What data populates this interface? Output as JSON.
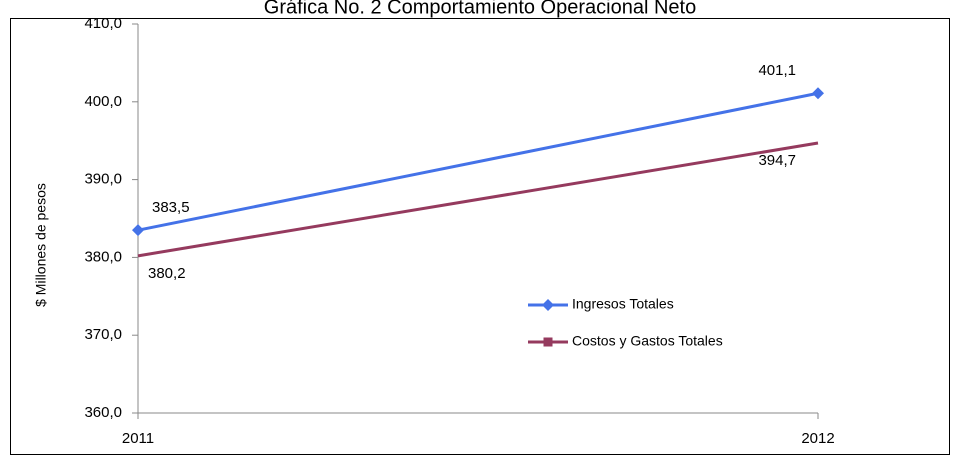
{
  "chart_data": {
    "type": "line",
    "title": "Gráfica No. 2 Comportamiento Operacional Neto",
    "y_label": "$ Millones de pesos",
    "categories": [
      "2011",
      "2012"
    ],
    "series": [
      {
        "name": "Ingresos Totales",
        "color": "#4472e8",
        "marker": "diamond",
        "values": [
          383.5,
          401.1
        ],
        "value_labels": [
          "383,5",
          "401,1"
        ]
      },
      {
        "name": "Costos y Gastos Totales",
        "color": "#953a5e",
        "marker": "square",
        "values": [
          380.2,
          394.7
        ],
        "value_labels": [
          "380,2",
          "394,7"
        ]
      }
    ],
    "ylim": [
      360,
      410
    ],
    "yticks": [
      {
        "value": 360,
        "label": "360,0"
      },
      {
        "value": 370,
        "label": "370,0"
      },
      {
        "value": 380,
        "label": "380,0"
      },
      {
        "value": 390,
        "label": "390,0"
      },
      {
        "value": 400,
        "label": "400,0"
      },
      {
        "value": 410,
        "label": "410,0"
      }
    ],
    "grid": false,
    "legend": "right"
  }
}
